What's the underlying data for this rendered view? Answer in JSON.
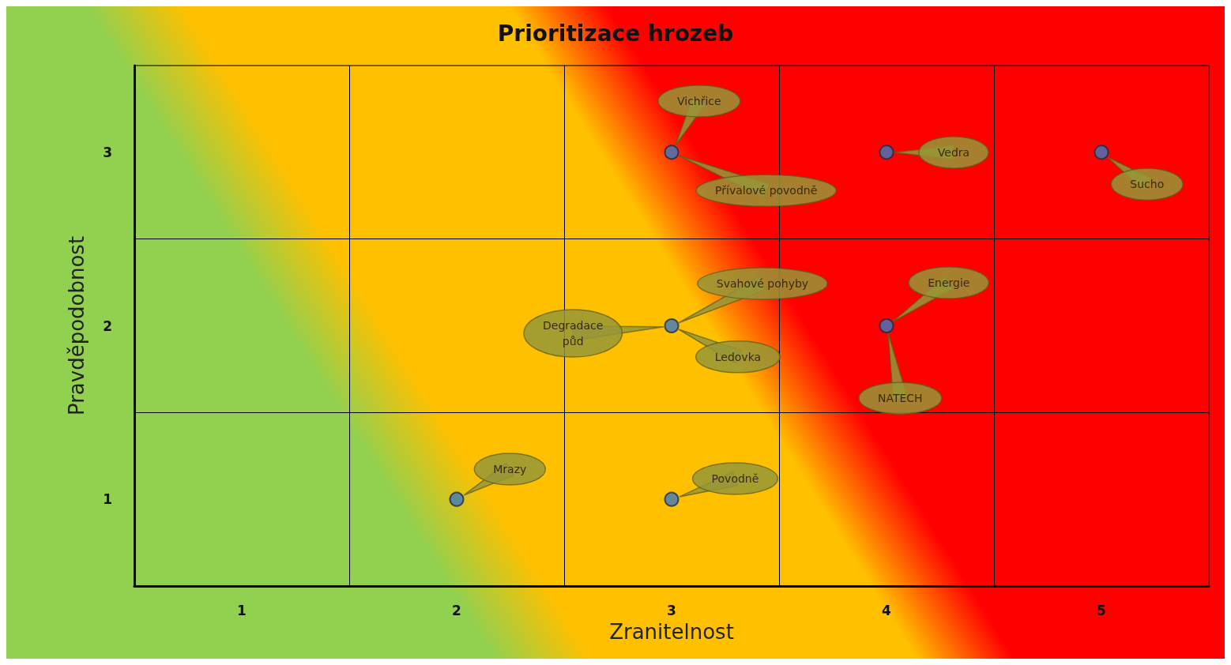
{
  "chart_data": {
    "type": "scatter",
    "title": "Prioritizace hrozeb",
    "xlabel": "Zranitelnost",
    "ylabel": "Pravděpodobnost",
    "x": [
      3,
      4,
      5,
      3,
      4,
      2,
      3
    ],
    "series": [
      {
        "color": "#3d78c0",
        "values": [
          3,
          3,
          3,
          2,
          2,
          1,
          1
        ]
      }
    ],
    "marker": "circle",
    "xlim": [
      0.5,
      5.5
    ],
    "xticks": [
      1,
      2,
      3,
      4,
      5
    ],
    "ylim": [
      0.5,
      3.5
    ],
    "yticks": [
      1,
      2,
      3
    ],
    "ref_lines": [
      {
        "axis": "x",
        "value": 1.5
      },
      {
        "axis": "x",
        "value": 2.5
      },
      {
        "axis": "x",
        "value": 3.5
      },
      {
        "axis": "x",
        "value": 4.5
      },
      {
        "axis": "y",
        "value": 1.5
      },
      {
        "axis": "y",
        "value": 2.5
      }
    ],
    "annotations": [
      "Vichřice",
      "Přívalové povodně",
      "Vedra",
      "Sucho",
      "Svahové pohyby",
      "Degradace půd",
      "Ledovka",
      "Energie",
      "NATECH",
      "Mrazy",
      "Povodně"
    ]
  }
}
